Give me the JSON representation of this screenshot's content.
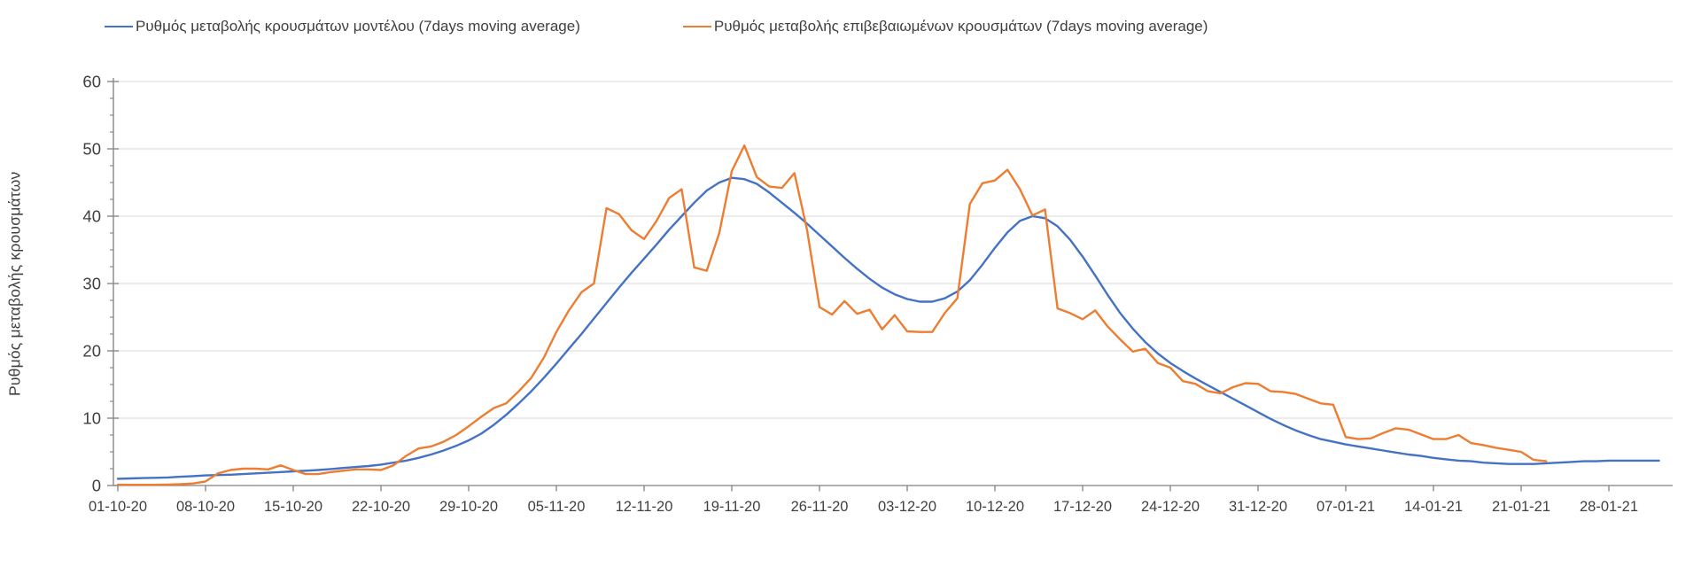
{
  "colors": {
    "model_line": "#4472C4",
    "confirmed_line": "#ED7D31",
    "grid": "#D9D9D9",
    "axis": "#808080",
    "text": "#404040",
    "background": "#FFFFFF"
  },
  "chart_data": {
    "type": "line",
    "title": "",
    "xlabel": "",
    "ylabel": "Ρυθμός μεταβολής κρουσμάτων",
    "ylim": [
      0,
      60
    ],
    "y_ticks": [
      0,
      10,
      20,
      30,
      40,
      50,
      60
    ],
    "y_minor_tick_step": 2.5,
    "grid": "horizontal-only",
    "legend_position": "top",
    "x_start_date": "01-10-20",
    "x_frequency": "daily",
    "x_tick_labels": [
      "01-10-20",
      "08-10-20",
      "15-10-20",
      "22-10-20",
      "29-10-20",
      "05-11-20",
      "12-11-20",
      "19-11-20",
      "26-11-20",
      "03-12-20",
      "10-12-20",
      "17-12-20",
      "24-12-20",
      "31-12-20",
      "07-01-21",
      "14-01-21",
      "21-01-21",
      "28-01-21"
    ],
    "x_tick_day_indices": [
      0,
      7,
      14,
      21,
      28,
      35,
      42,
      49,
      56,
      63,
      70,
      77,
      84,
      91,
      98,
      105,
      112,
      119
    ],
    "series": [
      {
        "name": "Ρυθμός μεταβολής κρουσμάτων μοντέλου (7days moving average)",
        "color": "#4472C4",
        "start_day_index": 0,
        "values": [
          1.0,
          1.05,
          1.1,
          1.15,
          1.2,
          1.3,
          1.4,
          1.5,
          1.55,
          1.6,
          1.7,
          1.8,
          1.9,
          2.0,
          2.1,
          2.2,
          2.3,
          2.45,
          2.6,
          2.75,
          2.9,
          3.1,
          3.4,
          3.7,
          4.1,
          4.6,
          5.2,
          5.9,
          6.7,
          7.7,
          9.0,
          10.5,
          12.2,
          14.0,
          16.0,
          18.1,
          20.3,
          22.5,
          24.8,
          27.1,
          29.4,
          31.6,
          33.7,
          35.8,
          38.0,
          40.0,
          42.0,
          43.8,
          45.0,
          45.7,
          45.5,
          44.8,
          43.5,
          42.0,
          40.5,
          38.9,
          37.2,
          35.5,
          33.8,
          32.2,
          30.7,
          29.4,
          28.4,
          27.7,
          27.3,
          27.3,
          27.8,
          28.8,
          30.5,
          32.8,
          35.3,
          37.6,
          39.3,
          40.0,
          39.7,
          38.5,
          36.5,
          34.0,
          31.2,
          28.3,
          25.6,
          23.3,
          21.3,
          19.6,
          18.2,
          17.0,
          15.9,
          14.9,
          13.9,
          12.9,
          11.9,
          10.9,
          9.9,
          9.0,
          8.2,
          7.5,
          6.9,
          6.5,
          6.1,
          5.8,
          5.5,
          5.2,
          4.9,
          4.6,
          4.4,
          4.1,
          3.9,
          3.7,
          3.6,
          3.4,
          3.3,
          3.2,
          3.2,
          3.2,
          3.3,
          3.4,
          3.5,
          3.6,
          3.6,
          3.7,
          3.7,
          3.7,
          3.7,
          3.7
        ]
      },
      {
        "name": "Ρυθμός μεταβολής επιβεβαιωμένων κρουσμάτων (7days moving average)",
        "color": "#ED7D31",
        "start_day_index": 0,
        "values": [
          0.1,
          0.1,
          0.1,
          0.1,
          0.15,
          0.2,
          0.3,
          0.6,
          1.8,
          2.3,
          2.5,
          2.5,
          2.4,
          3.0,
          2.3,
          1.7,
          1.7,
          2.0,
          2.2,
          2.4,
          2.4,
          2.3,
          3.0,
          4.4,
          5.5,
          5.8,
          6.5,
          7.5,
          8.8,
          10.2,
          11.5,
          12.2,
          14.0,
          16.0,
          19.0,
          22.8,
          26.0,
          28.7,
          30.0,
          41.2,
          40.3,
          37.9,
          36.6,
          39.3,
          42.7,
          44.0,
          32.4,
          31.9,
          37.5,
          46.7,
          50.5,
          45.8,
          44.4,
          44.2,
          46.4,
          38.0,
          26.5,
          25.4,
          27.4,
          25.5,
          26.1,
          23.2,
          25.3,
          22.9,
          22.8,
          22.8,
          25.6,
          27.8,
          41.8,
          44.9,
          45.3,
          46.9,
          44.0,
          40.1,
          41.0,
          26.3,
          25.6,
          24.7,
          26.0,
          23.6,
          21.7,
          19.9,
          20.3,
          18.2,
          17.5,
          15.5,
          15.1,
          14.0,
          13.7,
          14.6,
          15.2,
          15.1,
          14.0,
          13.9,
          13.6,
          12.9,
          12.2,
          12.0,
          7.2,
          6.9,
          7.0,
          7.8,
          8.5,
          8.3,
          7.6,
          6.9,
          6.9,
          7.5,
          6.3,
          6.0,
          5.6,
          5.3,
          5.0,
          3.8,
          3.6
        ]
      }
    ]
  }
}
